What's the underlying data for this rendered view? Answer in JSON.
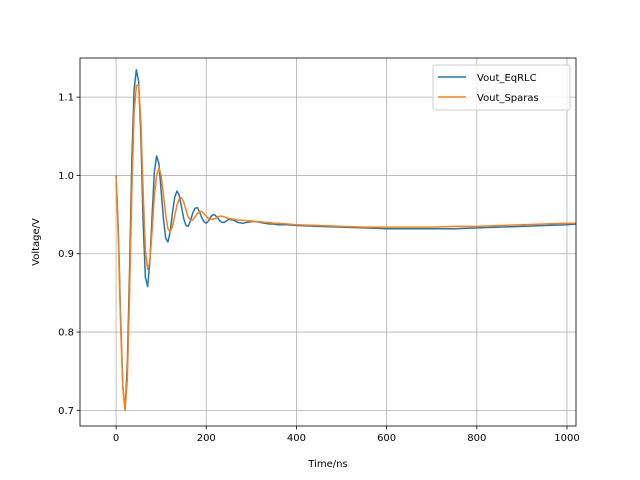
{
  "chart_data": {
    "type": "line",
    "title": "",
    "xlabel": "Time/ns",
    "ylabel": "Voltage/V",
    "xlim": [
      -80,
      1020
    ],
    "ylim": [
      0.68,
      1.15
    ],
    "xticks": [
      0,
      200,
      400,
      600,
      800,
      1000
    ],
    "yticks": [
      0.7,
      0.8,
      0.9,
      1.0,
      1.1
    ],
    "xtick_labels": [
      "0",
      "200",
      "400",
      "600",
      "800",
      "1000"
    ],
    "ytick_labels": [
      "0.7",
      "0.8",
      "0.9",
      "1.0",
      "1.1"
    ],
    "grid": true,
    "legend_position": "top-right",
    "series": [
      {
        "name": "Vout_EqRLC",
        "color": "#1f77b4",
        "x": [
          0,
          5,
          10,
          15,
          20,
          25,
          30,
          35,
          40,
          45,
          50,
          55,
          60,
          65,
          70,
          75,
          80,
          85,
          90,
          95,
          100,
          105,
          110,
          115,
          120,
          125,
          130,
          135,
          140,
          145,
          150,
          155,
          160,
          165,
          170,
          175,
          180,
          185,
          190,
          195,
          200,
          205,
          210,
          215,
          220,
          225,
          230,
          235,
          240,
          245,
          250,
          260,
          270,
          280,
          290,
          300,
          310,
          320,
          330,
          340,
          350,
          360,
          380,
          400,
          450,
          500,
          550,
          600,
          650,
          700,
          750,
          800,
          850,
          900,
          950,
          1000,
          1020
        ],
        "y": [
          1.0,
          0.93,
          0.82,
          0.73,
          0.7,
          0.76,
          0.88,
          1.02,
          1.11,
          1.135,
          1.12,
          1.05,
          0.94,
          0.87,
          0.858,
          0.89,
          0.95,
          1.005,
          1.025,
          1.015,
          0.98,
          0.945,
          0.92,
          0.915,
          0.928,
          0.952,
          0.972,
          0.98,
          0.975,
          0.96,
          0.945,
          0.936,
          0.935,
          0.942,
          0.952,
          0.958,
          0.959,
          0.954,
          0.946,
          0.941,
          0.939,
          0.942,
          0.947,
          0.95,
          0.949,
          0.946,
          0.942,
          0.94,
          0.94,
          0.942,
          0.944,
          0.943,
          0.94,
          0.939,
          0.94,
          0.941,
          0.941,
          0.94,
          0.939,
          0.938,
          0.938,
          0.937,
          0.937,
          0.936,
          0.935,
          0.934,
          0.933,
          0.932,
          0.932,
          0.932,
          0.932,
          0.933,
          0.934,
          0.935,
          0.936,
          0.937,
          0.938
        ]
      },
      {
        "name": "Vout_Sparas",
        "color": "#ff7f0e",
        "x": [
          0,
          5,
          10,
          15,
          20,
          25,
          30,
          35,
          40,
          45,
          50,
          55,
          60,
          65,
          70,
          75,
          80,
          85,
          90,
          95,
          100,
          105,
          110,
          115,
          120,
          125,
          130,
          135,
          140,
          145,
          150,
          155,
          160,
          165,
          170,
          175,
          180,
          185,
          190,
          195,
          200,
          205,
          210,
          215,
          220,
          225,
          230,
          235,
          240,
          245,
          250,
          260,
          270,
          280,
          290,
          300,
          310,
          320,
          330,
          340,
          350,
          360,
          380,
          400,
          450,
          500,
          550,
          600,
          650,
          700,
          750,
          800,
          850,
          900,
          950,
          1000,
          1020
        ],
        "y": [
          1.0,
          0.92,
          0.81,
          0.73,
          0.7,
          0.74,
          0.85,
          0.98,
          1.08,
          1.115,
          1.115,
          1.07,
          0.98,
          0.905,
          0.88,
          0.89,
          0.93,
          0.975,
          1.0,
          1.01,
          1.0,
          0.975,
          0.95,
          0.932,
          0.928,
          0.935,
          0.948,
          0.962,
          0.97,
          0.972,
          0.966,
          0.956,
          0.947,
          0.943,
          0.943,
          0.947,
          0.951,
          0.954,
          0.954,
          0.951,
          0.948,
          0.945,
          0.944,
          0.944,
          0.945,
          0.947,
          0.948,
          0.948,
          0.947,
          0.946,
          0.945,
          0.944,
          0.943,
          0.943,
          0.942,
          0.942,
          0.941,
          0.941,
          0.94,
          0.94,
          0.939,
          0.939,
          0.938,
          0.937,
          0.936,
          0.935,
          0.934,
          0.934,
          0.934,
          0.934,
          0.935,
          0.935,
          0.936,
          0.937,
          0.938,
          0.939,
          0.939
        ]
      }
    ]
  }
}
